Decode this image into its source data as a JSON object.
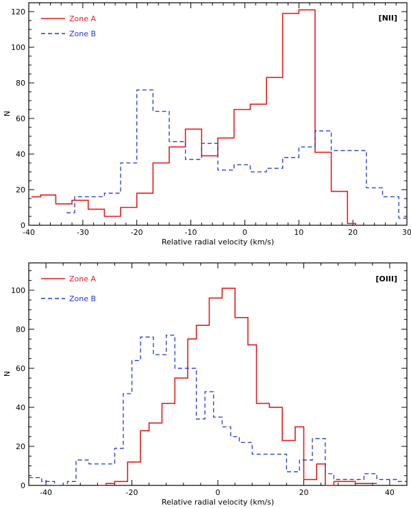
{
  "colors": {
    "zone_a": "#e31a1c",
    "zone_b": "#1f35d8"
  },
  "chart_data": [
    {
      "type": "step-histogram",
      "ion": "[NII]",
      "xlabel": "Relative radial velocity (km/s)",
      "ylabel": "N",
      "xlim": [
        -40,
        30
      ],
      "ylim": [
        0,
        125
      ],
      "xticks": [
        -40,
        -30,
        -20,
        -10,
        0,
        10,
        20,
        30
      ],
      "yticks": [
        0,
        20,
        40,
        60,
        80,
        100,
        120
      ],
      "series": [
        {
          "name": "Zone A",
          "style": "solid",
          "x": [
            -39.5,
            -37.8,
            -35,
            -32,
            -29,
            -26,
            -23,
            -20,
            -17,
            -14,
            -11,
            -8,
            -5,
            -2,
            1,
            4,
            7,
            10,
            13,
            16,
            19,
            20.5
          ],
          "y": [
            16,
            17,
            12,
            14,
            9,
            5,
            10,
            18,
            35,
            44,
            54,
            39,
            49,
            65,
            68,
            83,
            119,
            121,
            41,
            19,
            1,
            0
          ]
        },
        {
          "name": "Zone B",
          "style": "dashed",
          "x": [
            -33,
            -31.5,
            -26,
            -23,
            -20,
            -17,
            -14,
            -11,
            -8,
            -5,
            -2,
            1,
            4,
            7,
            10,
            13,
            16,
            19,
            22.5,
            25.5,
            28.5,
            30
          ],
          "y": [
            7,
            16,
            18,
            35,
            76,
            64,
            47,
            37,
            46,
            31,
            34,
            30,
            32,
            38,
            44,
            53,
            42,
            42,
            21,
            16,
            4,
            4
          ]
        }
      ]
    },
    {
      "type": "step-histogram",
      "ion": "[OIII]",
      "xlabel": "Relative radial velocity (km/s)",
      "ylabel": "N",
      "xlim": [
        -44,
        44
      ],
      "ylim": [
        0,
        114
      ],
      "xticks": [
        -40,
        -20,
        0,
        20,
        40
      ],
      "yticks": [
        0,
        20,
        40,
        60,
        80,
        100
      ],
      "series": [
        {
          "name": "Zone A",
          "style": "solid",
          "x": [
            -28,
            -26,
            -24,
            -21,
            -18,
            -16,
            -13,
            -10,
            -7,
            -5,
            -2,
            1,
            4,
            7,
            9,
            12,
            15,
            18,
            20,
            23,
            25,
            27,
            30,
            32,
            35,
            37
          ],
          "y": [
            0,
            1,
            2,
            12,
            28,
            32,
            42,
            55,
            75,
            82,
            96,
            101,
            86,
            72,
            42,
            40,
            23,
            30,
            3,
            11,
            0,
            2,
            2,
            1,
            1,
            1
          ]
        },
        {
          "name": "Zone B",
          "style": "dashed",
          "x": [
            -44,
            -41,
            -38,
            -35,
            -33,
            -30,
            -27,
            -24,
            -22,
            -20,
            -18,
            -15,
            -12,
            -10,
            -7,
            -5,
            -3,
            -1,
            1,
            3,
            5,
            8,
            10,
            13,
            16,
            19,
            22,
            25,
            27,
            29,
            31,
            34,
            37,
            40,
            42,
            44
          ],
          "y": [
            4,
            2,
            0,
            2,
            13,
            11,
            11,
            19,
            47,
            64,
            76,
            67,
            77,
            60,
            60,
            34,
            48,
            35,
            30,
            25,
            22,
            16,
            16,
            16,
            7,
            13,
            24,
            6,
            3,
            3,
            3,
            6,
            3,
            3,
            2,
            2
          ]
        }
      ]
    }
  ]
}
